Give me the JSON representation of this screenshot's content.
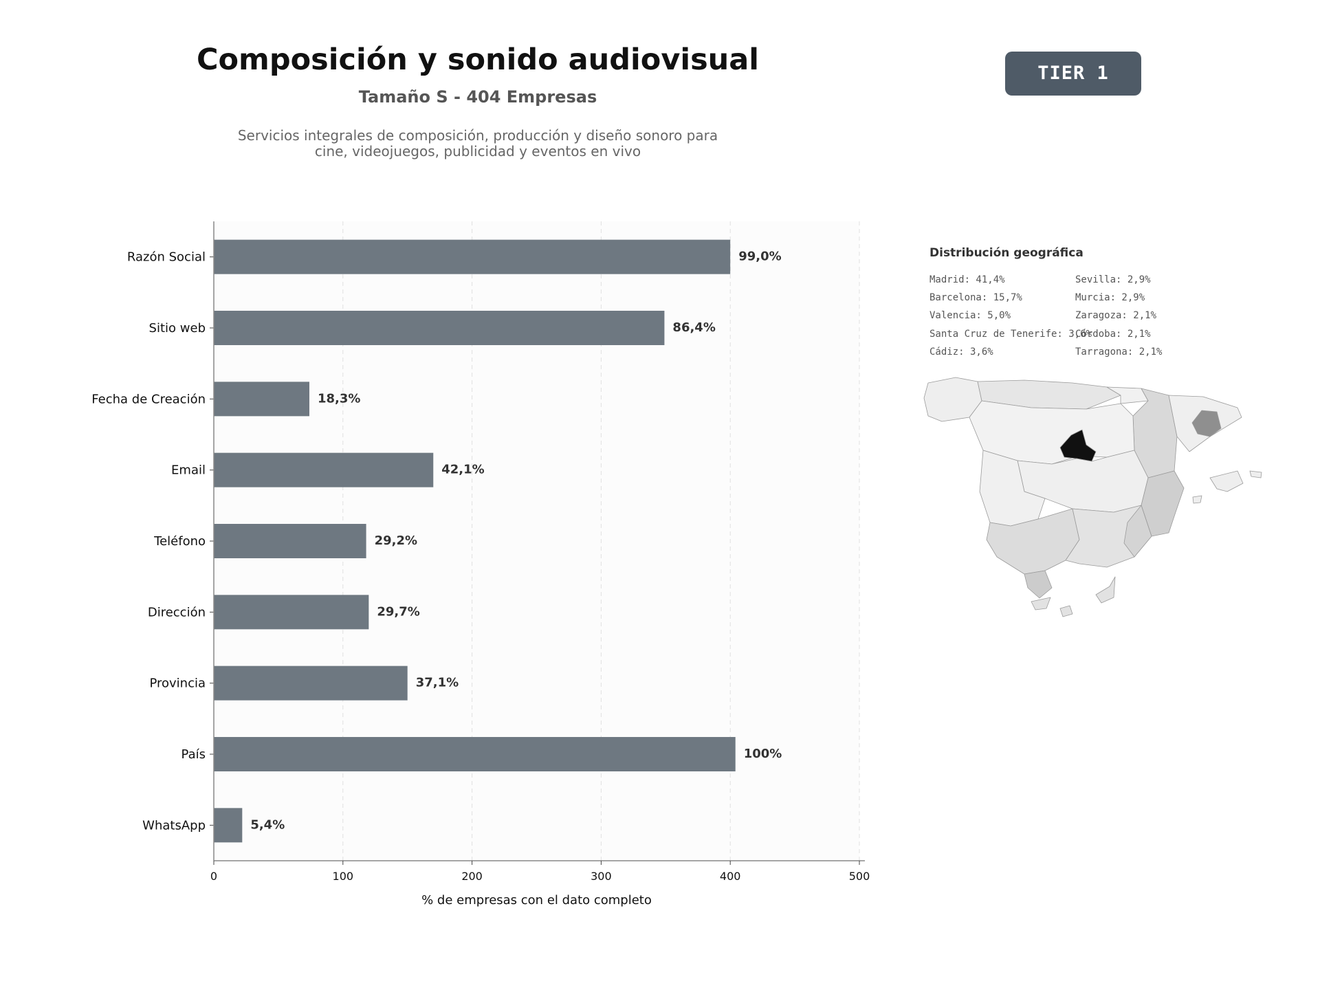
{
  "header": {
    "title": "Composición y sonido audiovisual",
    "subtitle": "Tamaño S - 404 Empresas",
    "description_lines": [
      "Servicios integrales de composición, producción y diseño sonoro para",
      "cine, videojuegos, publicidad y eventos en vivo"
    ],
    "tier_label": "TIER 1"
  },
  "chart_data": {
    "type": "bar",
    "orientation": "horizontal",
    "categories": [
      "Razón Social",
      "Sitio web",
      "Fecha de Creación",
      "Email",
      "Teléfono",
      "Dirección",
      "Provincia",
      "País",
      "WhatsApp"
    ],
    "values": [
      400,
      349,
      74,
      170,
      118,
      120,
      150,
      404,
      22
    ],
    "data_labels": [
      "99,0%",
      "86,4%",
      "18,3%",
      "42,1%",
      "29,2%",
      "29,7%",
      "37,1%",
      "100%",
      "5,4%"
    ],
    "xlabel": "% de empresas con el dato completo",
    "ylabel": "",
    "xlim": [
      0,
      500
    ],
    "xticks": [
      0,
      100,
      200,
      300,
      400,
      500
    ],
    "grid": "vertical dashed",
    "bar_color": "#6e7881"
  },
  "geo": {
    "title": "Distribución geográfica",
    "left_column": [
      "Madrid: 41,4%",
      "Barcelona: 15,7%",
      "Valencia: 5,0%",
      "Santa Cruz de Tenerife: 3,6%",
      "Cádiz: 3,6%"
    ],
    "right_column": [
      "Sevilla: 2,9%",
      "Murcia: 2,9%",
      "Zaragoza: 2,1%",
      "Córdoba: 2,1%",
      "Tarragona: 2,1%"
    ]
  }
}
